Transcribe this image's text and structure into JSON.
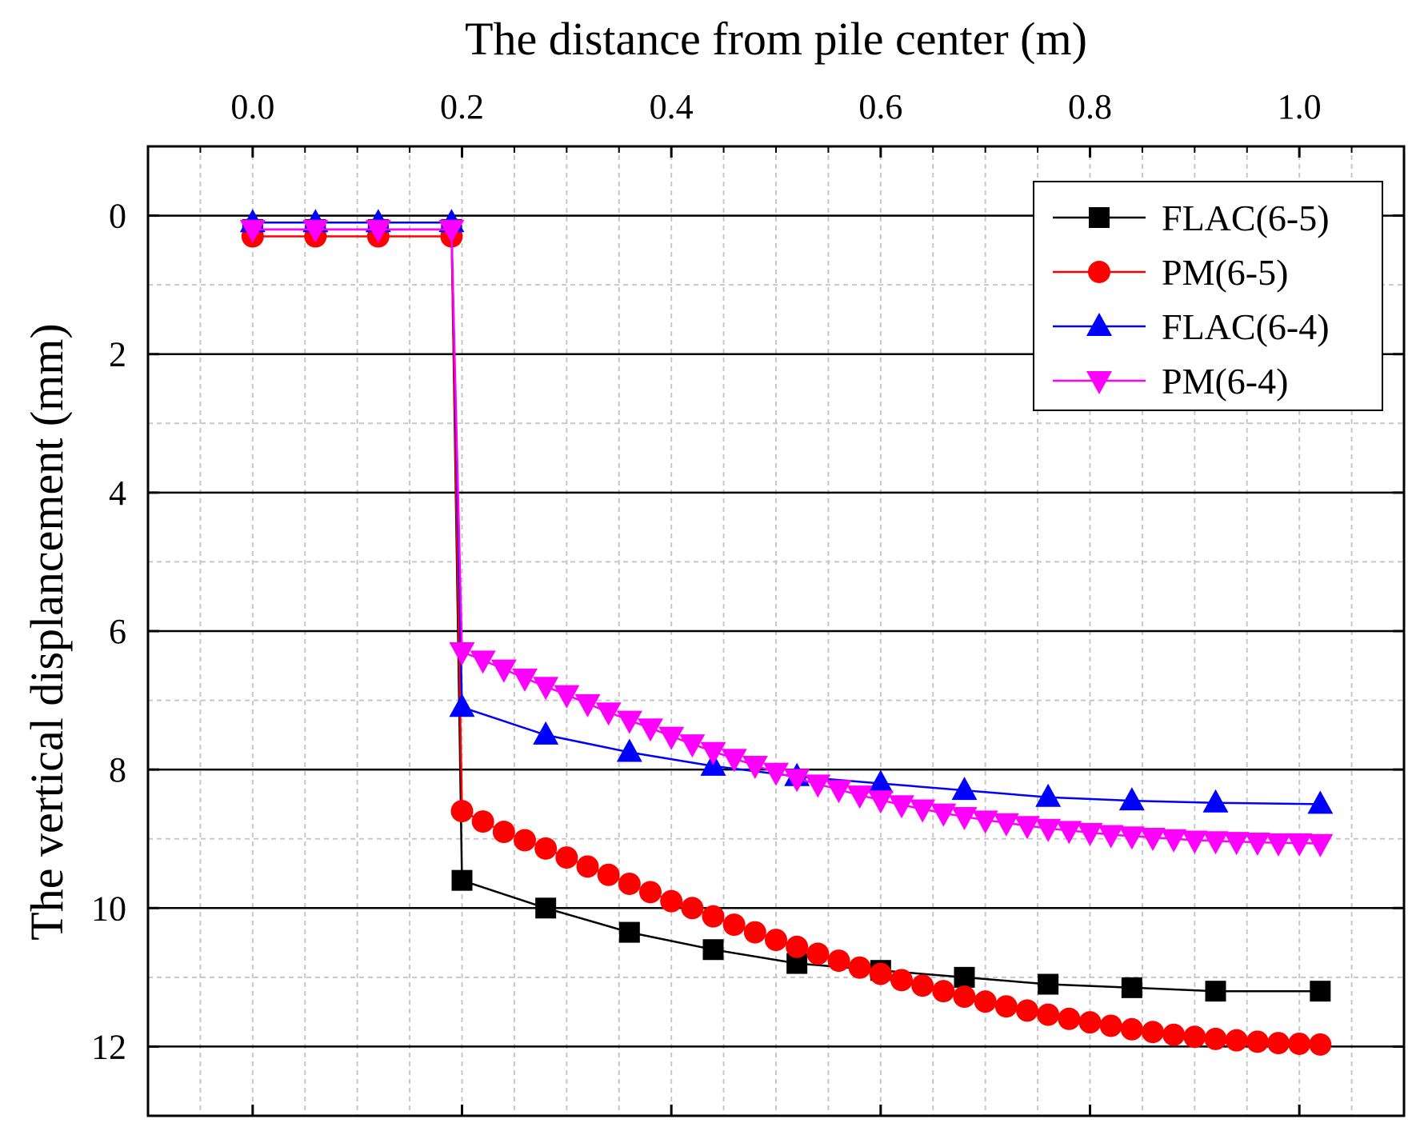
{
  "chart_data": {
    "type": "line",
    "xlabel": "The distance from pile center (m)",
    "ylabel": "The vertical displancement (mm)",
    "xlim": [
      -0.1,
      1.1
    ],
    "ylim": [
      13,
      -1
    ],
    "x_axis_position": "top",
    "y_inverted": true,
    "x_ticks": [
      0.0,
      0.2,
      0.4,
      0.6,
      0.8,
      1.0
    ],
    "x_tick_labels": [
      "0.0",
      "0.2",
      "0.4",
      "0.6",
      "0.8",
      "1.0"
    ],
    "y_ticks": [
      0,
      2,
      4,
      6,
      8,
      10,
      12
    ],
    "y_tick_labels": [
      "0",
      "2",
      "4",
      "6",
      "8",
      "10",
      "12"
    ],
    "grid": {
      "major_y": "solid",
      "minor": "dashed"
    },
    "legend_position": "top-right",
    "series": [
      {
        "name": "FLAC(6-5)",
        "color": "#000000",
        "marker": "square",
        "x": [
          0.0,
          0.06,
          0.12,
          0.19,
          0.2,
          0.28,
          0.36,
          0.44,
          0.52,
          0.6,
          0.68,
          0.76,
          0.84,
          0.92,
          1.02
        ],
        "y": [
          0.2,
          0.2,
          0.2,
          0.2,
          9.6,
          10.0,
          10.35,
          10.6,
          10.8,
          10.9,
          11.0,
          11.1,
          11.15,
          11.2,
          11.2
        ]
      },
      {
        "name": "PM(6-5)",
        "color": "#ff0000",
        "marker": "circle",
        "x": [
          0.0,
          0.06,
          0.12,
          0.19,
          0.2,
          0.22,
          0.24,
          0.26,
          0.28,
          0.3,
          0.32,
          0.34,
          0.36,
          0.38,
          0.4,
          0.42,
          0.44,
          0.46,
          0.48,
          0.5,
          0.52,
          0.54,
          0.56,
          0.58,
          0.6,
          0.62,
          0.64,
          0.66,
          0.68,
          0.7,
          0.72,
          0.74,
          0.76,
          0.78,
          0.8,
          0.82,
          0.84,
          0.86,
          0.88,
          0.9,
          0.92,
          0.94,
          0.96,
          0.98,
          1.0,
          1.02
        ],
        "y": [
          0.3,
          0.3,
          0.3,
          0.3,
          8.6,
          8.75,
          8.9,
          9.02,
          9.14,
          9.27,
          9.4,
          9.52,
          9.65,
          9.77,
          9.9,
          10.0,
          10.12,
          10.24,
          10.35,
          10.46,
          10.56,
          10.66,
          10.76,
          10.86,
          10.95,
          11.04,
          11.12,
          11.2,
          11.28,
          11.35,
          11.42,
          11.48,
          11.54,
          11.6,
          11.65,
          11.7,
          11.75,
          11.79,
          11.83,
          11.86,
          11.89,
          11.91,
          11.93,
          11.95,
          11.96,
          11.97
        ]
      },
      {
        "name": "FLAC(6-4)",
        "color": "#0000ff",
        "marker": "triangle-up",
        "x": [
          0.0,
          0.06,
          0.12,
          0.19,
          0.2,
          0.28,
          0.36,
          0.44,
          0.52,
          0.6,
          0.68,
          0.76,
          0.84,
          0.92,
          1.02
        ],
        "y": [
          0.1,
          0.1,
          0.1,
          0.1,
          7.1,
          7.5,
          7.75,
          7.95,
          8.1,
          8.2,
          8.3,
          8.4,
          8.45,
          8.48,
          8.5
        ]
      },
      {
        "name": "PM(6-4)",
        "color": "#ff00ff",
        "marker": "triangle-down",
        "x": [
          0.0,
          0.06,
          0.12,
          0.19,
          0.2,
          0.22,
          0.24,
          0.26,
          0.28,
          0.3,
          0.32,
          0.34,
          0.36,
          0.38,
          0.4,
          0.42,
          0.44,
          0.46,
          0.48,
          0.5,
          0.52,
          0.54,
          0.56,
          0.58,
          0.6,
          0.62,
          0.64,
          0.66,
          0.68,
          0.7,
          0.72,
          0.74,
          0.76,
          0.78,
          0.8,
          0.82,
          0.84,
          0.86,
          0.88,
          0.9,
          0.92,
          0.94,
          0.96,
          0.98,
          1.0,
          1.02
        ],
        "y": [
          0.2,
          0.2,
          0.2,
          0.2,
          6.3,
          6.42,
          6.55,
          6.68,
          6.8,
          6.92,
          7.05,
          7.17,
          7.29,
          7.4,
          7.52,
          7.63,
          7.74,
          7.84,
          7.94,
          8.04,
          8.13,
          8.21,
          8.29,
          8.37,
          8.44,
          8.51,
          8.57,
          8.63,
          8.68,
          8.73,
          8.77,
          8.81,
          8.85,
          8.88,
          8.91,
          8.94,
          8.96,
          8.98,
          9.0,
          9.02,
          9.03,
          9.04,
          9.05,
          9.06,
          9.06,
          9.07
        ]
      }
    ]
  }
}
